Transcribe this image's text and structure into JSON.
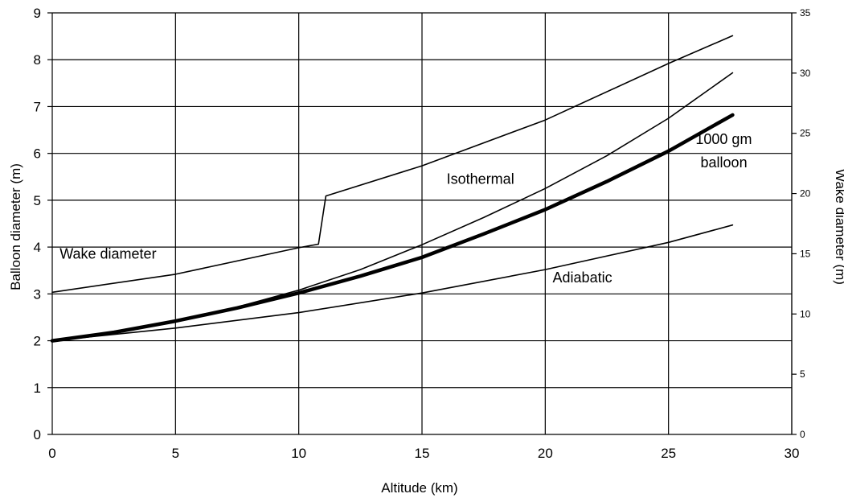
{
  "chart_data": {
    "type": "line",
    "title": "",
    "xlabel": "Altitude (km)",
    "ylabel": "Balloon diameter (m)",
    "y2label": "Wake diameter (m)",
    "xlim": [
      0,
      30
    ],
    "ylim": [
      0,
      9
    ],
    "y2lim": [
      0,
      35
    ],
    "x_ticks": [
      "0",
      "5",
      "10",
      "15",
      "20",
      "25",
      "30"
    ],
    "y_ticks": [
      "0",
      "1",
      "2",
      "3",
      "4",
      "5",
      "6",
      "7",
      "8",
      "9"
    ],
    "y2_ticks": [
      "0",
      "5",
      "10",
      "15",
      "20",
      "25",
      "30",
      "35"
    ],
    "grid": true,
    "legend": "none",
    "series": [
      {
        "name": "Wake diameter",
        "axis": "right",
        "line": "thin",
        "x": [
          0,
          5,
          10,
          10.8,
          11.1,
          15,
          20,
          25,
          27.6
        ],
        "y": [
          11.8,
          13.3,
          15.5,
          15.8,
          19.8,
          22.3,
          26.1,
          30.8,
          33.1
        ]
      },
      {
        "name": "Isothermal",
        "axis": "left",
        "line": "thin",
        "x": [
          0,
          2.5,
          5,
          7.5,
          10,
          12.5,
          15,
          17.5,
          20,
          22.5,
          25,
          27.6
        ],
        "y": [
          2.0,
          2.2,
          2.42,
          2.72,
          3.08,
          3.52,
          4.05,
          4.63,
          5.25,
          5.95,
          6.75,
          7.72
        ]
      },
      {
        "name": "1000 gm balloon",
        "axis": "left",
        "line": "thick",
        "x": [
          0,
          2.5,
          5,
          7.5,
          10,
          12.5,
          15,
          17.5,
          20,
          22.5,
          25,
          27.6
        ],
        "y": [
          2.0,
          2.18,
          2.42,
          2.7,
          3.02,
          3.38,
          3.78,
          4.28,
          4.8,
          5.4,
          6.05,
          6.82
        ]
      },
      {
        "name": "Adiabatic",
        "axis": "left",
        "line": "thin",
        "x": [
          0,
          5,
          10,
          15,
          20,
          25,
          27.6
        ],
        "y": [
          2.0,
          2.27,
          2.6,
          3.02,
          3.52,
          4.1,
          4.47
        ]
      }
    ],
    "annotations": [
      {
        "text": "Wake diameter",
        "x": 0.3,
        "y": 3.75,
        "axis": "left"
      },
      {
        "text": "Isothermal",
        "x": 16.0,
        "y": 5.35,
        "axis": "left"
      },
      {
        "text": "Adiabatic",
        "x": 20.3,
        "y": 3.25,
        "axis": "left"
      },
      {
        "text": "1000 gm",
        "x": 26.1,
        "y": 6.2,
        "axis": "left"
      },
      {
        "text": "balloon",
        "x": 26.3,
        "y": 5.7,
        "axis": "left"
      }
    ]
  }
}
